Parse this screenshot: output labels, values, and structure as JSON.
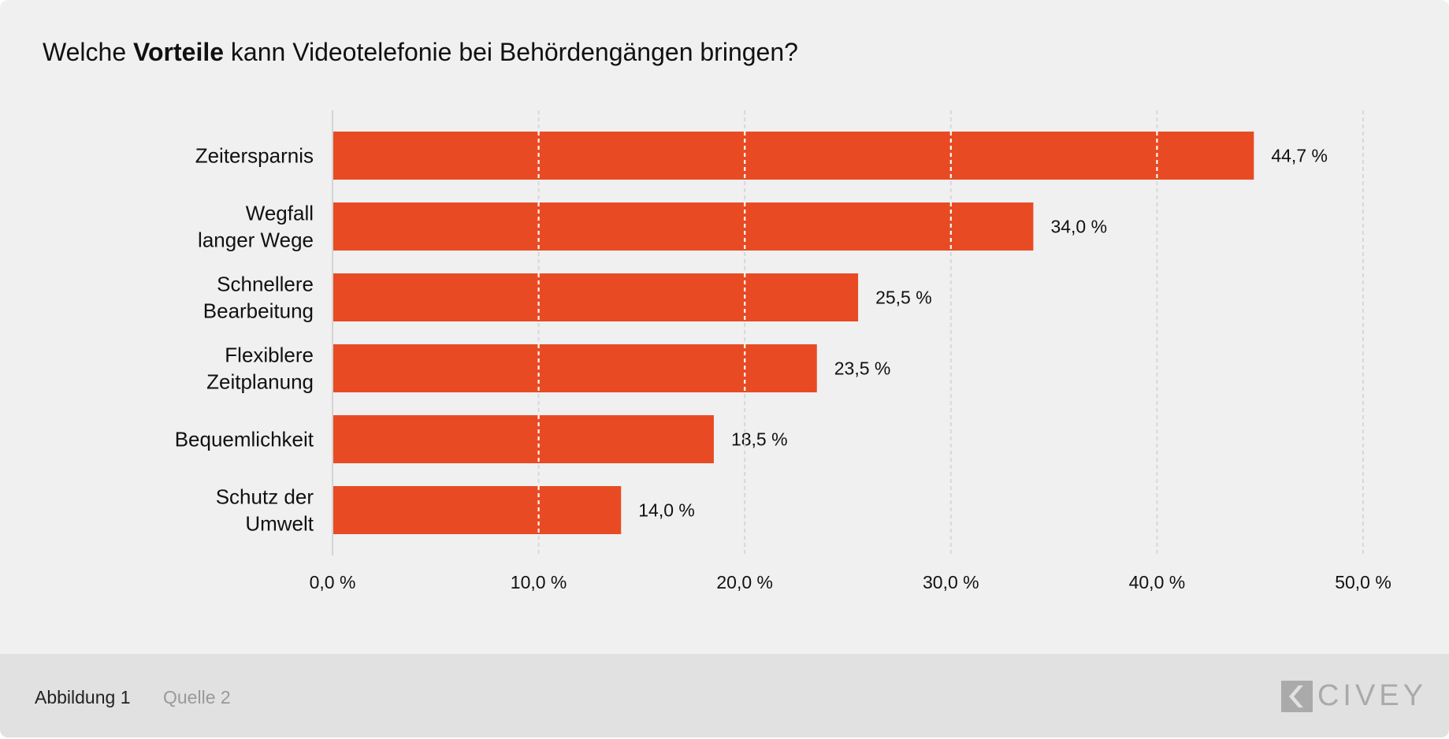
{
  "title": {
    "pre": "Welche ",
    "bold": "Vorteile",
    "post": " kann Videotelefonie bei Behördengängen bringen?"
  },
  "footer": {
    "figure": "Abbildung 1",
    "source": "Quelle 2",
    "logo": "CIVEY"
  },
  "colors": {
    "bar": "#e84b24",
    "background": "#f0f0f0",
    "footer": "#e1e1e1"
  },
  "chart_data": {
    "type": "bar",
    "orientation": "horizontal",
    "categories": [
      [
        "Zeitersparnis"
      ],
      [
        "Wegfall",
        "langer Wege"
      ],
      [
        "Schnellere",
        "Bearbeitung"
      ],
      [
        "Flexiblere",
        "Zeitplanung"
      ],
      [
        "Bequemlichkeit"
      ],
      [
        "Schutz der",
        "Umwelt"
      ]
    ],
    "values": [
      44.7,
      34.0,
      25.5,
      23.5,
      18.5,
      14.0
    ],
    "value_labels": [
      "44,7 %",
      "34,0 %",
      "25,5 %",
      "23,5 %",
      "18,5 %",
      "14,0 %"
    ],
    "xlim": [
      0,
      50
    ],
    "ticks": [
      0,
      10,
      20,
      30,
      40,
      50
    ],
    "tick_labels": [
      "0,0 %",
      "10,0 %",
      "20,0 %",
      "30,0 %",
      "40,0 %",
      "50,0 %"
    ],
    "grid": "vertical dashed",
    "title": "Welche Vorteile kann Videotelefonie bei Behördengängen bringen?"
  }
}
